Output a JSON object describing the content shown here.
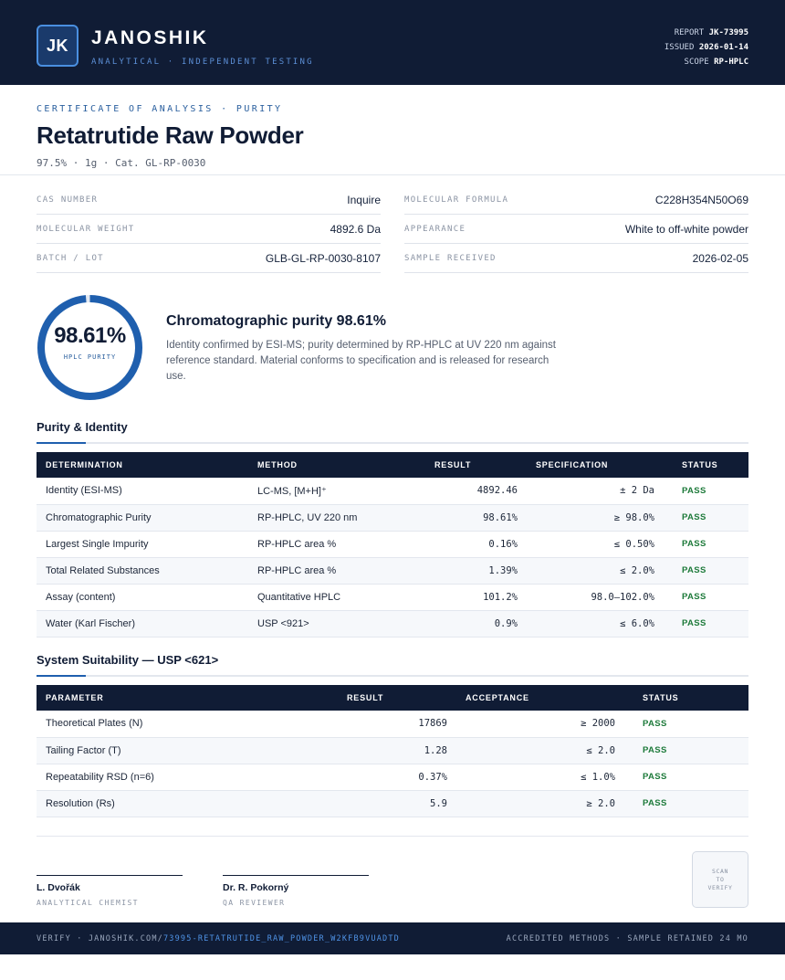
{
  "header": {
    "logo_initials": "JK",
    "brand": "JANOSHIK",
    "tagline": "ANALYTICAL · INDEPENDENT TESTING",
    "report_label": "REPORT",
    "report_value": "JK-73995",
    "issued_label": "ISSUED",
    "issued_value": "2026-01-14",
    "scope_label": "SCOPE",
    "scope_value": "RP-HPLC"
  },
  "document": {
    "eyebrow": "CERTIFICATE OF ANALYSIS · PURITY",
    "title": "Retatrutide Raw Powder",
    "subtitle": "97.5% · 1g  ·  Cat. GL-RP-0030"
  },
  "info": {
    "cas_label": "CAS NUMBER",
    "cas_value": "Inquire",
    "formula_label": "MOLECULAR FORMULA",
    "formula_value": "C228H354N50O69",
    "mw_label": "MOLECULAR WEIGHT",
    "mw_value": "4892.6 Da",
    "appearance_label": "APPEARANCE",
    "appearance_value": "White to off-white powder",
    "batch_label": "BATCH / LOT",
    "batch_value": "GLB-GL-RP-0030-8107",
    "received_label": "SAMPLE RECEIVED",
    "received_value": "2026-02-05"
  },
  "purity": {
    "value": "98.61%",
    "fraction": 0.9861,
    "ring_label": "HPLC PURITY",
    "heading": "Chromatographic purity 98.61%",
    "description": "Identity confirmed by ESI-MS; purity determined by RP-HPLC at UV 220 nm against reference standard. Material conforms to specification and is released for research use.",
    "ring_color": "#1f5fae"
  },
  "identity_section": {
    "title": "Purity & Identity",
    "headers": [
      "DETERMINATION",
      "METHOD",
      "RESULT",
      "SPECIFICATION",
      "STATUS"
    ],
    "rows": [
      {
        "determination": "Identity (ESI-MS)",
        "method": "LC-MS, [M+H]⁺",
        "result": "4892.46",
        "spec": "± 2 Da",
        "status": "PASS"
      },
      {
        "determination": "Chromatographic Purity",
        "method": "RP-HPLC, UV 220 nm",
        "result": "98.61%",
        "spec": "≥ 98.0%",
        "status": "PASS"
      },
      {
        "determination": "Largest Single Impurity",
        "method": "RP-HPLC area %",
        "result": "0.16%",
        "spec": "≤ 0.50%",
        "status": "PASS"
      },
      {
        "determination": "Total Related Substances",
        "method": "RP-HPLC area %",
        "result": "1.39%",
        "spec": "≤ 2.0%",
        "status": "PASS"
      },
      {
        "determination": "Assay (content)",
        "method": "Quantitative HPLC",
        "result": "101.2%",
        "spec": "98.0–102.0%",
        "status": "PASS"
      },
      {
        "determination": "Water (Karl Fischer)",
        "method": "USP <921>",
        "result": "0.9%",
        "spec": "≤ 6.0%",
        "status": "PASS"
      }
    ]
  },
  "suitability_section": {
    "title": "System Suitability — USP <621>",
    "headers": [
      "PARAMETER",
      "RESULT",
      "ACCEPTANCE",
      "STATUS"
    ],
    "rows": [
      {
        "parameter": "Theoretical Plates (N)",
        "result": "17869",
        "acceptance": "≥ 2000",
        "status": "PASS"
      },
      {
        "parameter": "Tailing Factor (T)",
        "result": "1.28",
        "acceptance": "≤ 2.0",
        "status": "PASS"
      },
      {
        "parameter": "Repeatability RSD (n=6)",
        "result": "0.37%",
        "acceptance": "≤ 1.0%",
        "status": "PASS"
      },
      {
        "parameter": "Resolution (Rs)",
        "result": "5.9",
        "acceptance": "≥ 2.0",
        "status": "PASS"
      }
    ]
  },
  "signatures": [
    {
      "name": "L. Dvořák",
      "role": "ANALYTICAL CHEMIST"
    },
    {
      "name": "Dr. R. Pokorný",
      "role": "QA REVIEWER"
    }
  ],
  "qr": {
    "line1": "SCAN",
    "line2": "TO",
    "line3": "VERIFY"
  },
  "footer": {
    "verify_prefix": "VERIFY · JANOSHIK.COM/",
    "verify_link": "73995-RETATRUTIDE_RAW_POWDER_W2KFB9VUADTD",
    "right": "ACCREDITED METHODS · SAMPLE RETAINED 24 MO"
  }
}
